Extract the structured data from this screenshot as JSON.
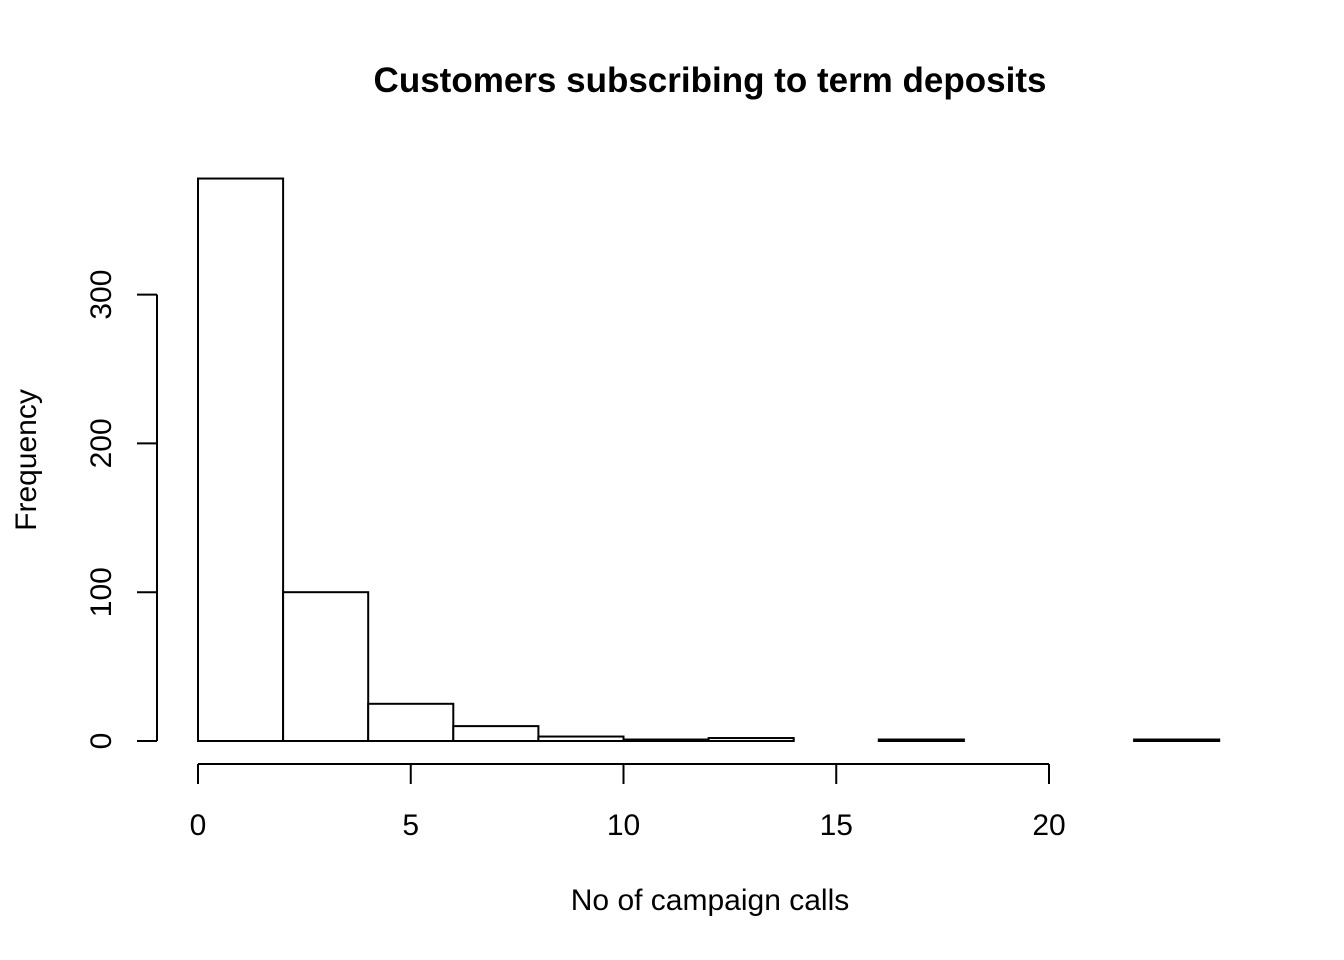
{
  "chart_data": {
    "type": "bar",
    "title": "Customers subscribing to term deposits",
    "xlabel": "No of campaign calls",
    "ylabel": "Frequency",
    "bin_edges": [
      0,
      2,
      4,
      6,
      8,
      10,
      12,
      14,
      16,
      18,
      20,
      22,
      24
    ],
    "values": [
      378,
      100,
      25,
      10,
      3,
      1,
      2,
      0,
      1,
      0,
      0,
      1
    ],
    "xlim": [
      0,
      24
    ],
    "ylim": [
      0,
      378
    ],
    "x_ticks": [
      0,
      5,
      10,
      15,
      20
    ],
    "x_tick_labels": [
      "0",
      "5",
      "10",
      "15",
      "20"
    ],
    "y_ticks": [
      0,
      100,
      200,
      300
    ],
    "y_tick_labels": [
      "0",
      "100",
      "200",
      "300"
    ],
    "grid": false,
    "colors": {
      "bar_fill": "#ffffff",
      "bar_stroke": "#000000",
      "background": "#ffffff"
    }
  }
}
